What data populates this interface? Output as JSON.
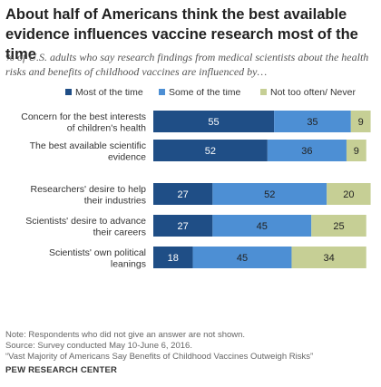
{
  "title": "About half of Americans think the best available evidence influences vaccine research most of the time",
  "subtitle": "% of U.S. adults who say research findings from medical scientists about the health risks and benefits of childhood vaccines are influenced by…",
  "notes": {
    "note": "Note: Respondents who did not give an answer are not shown.",
    "survey": "Source: Survey conducted May 10-June 6, 2016.",
    "report": "“Vast Majority of Americans Say Benefits of Childhood Vaccines Outweigh Risks”"
  },
  "source": "PEW RESEARCH CENTER",
  "colors": {
    "most": "#1f4e86",
    "some": "#4d8fd4",
    "never": "#c6cf95"
  },
  "chart_data": {
    "type": "bar",
    "orientation": "horizontal",
    "stacked": true,
    "legend_position": "top",
    "categories": [
      [
        "Concern for the best interests",
        "of children's health"
      ],
      [
        "The best available scientific",
        "evidence"
      ],
      [
        "Researchers' desire to help",
        "their industries"
      ],
      [
        "Scientists' desire to advance",
        "their careers"
      ],
      [
        "Scientists' own political",
        "leanings"
      ]
    ],
    "series": [
      {
        "name": "Most of the time",
        "values": [
          55,
          52,
          27,
          27,
          18
        ]
      },
      {
        "name": "Some of the time",
        "values": [
          35,
          36,
          52,
          45,
          45
        ]
      },
      {
        "name": "Not too often/ Never",
        "values": [
          9,
          9,
          20,
          25,
          34
        ]
      }
    ],
    "xlim": [
      0,
      100
    ],
    "grid": false
  }
}
